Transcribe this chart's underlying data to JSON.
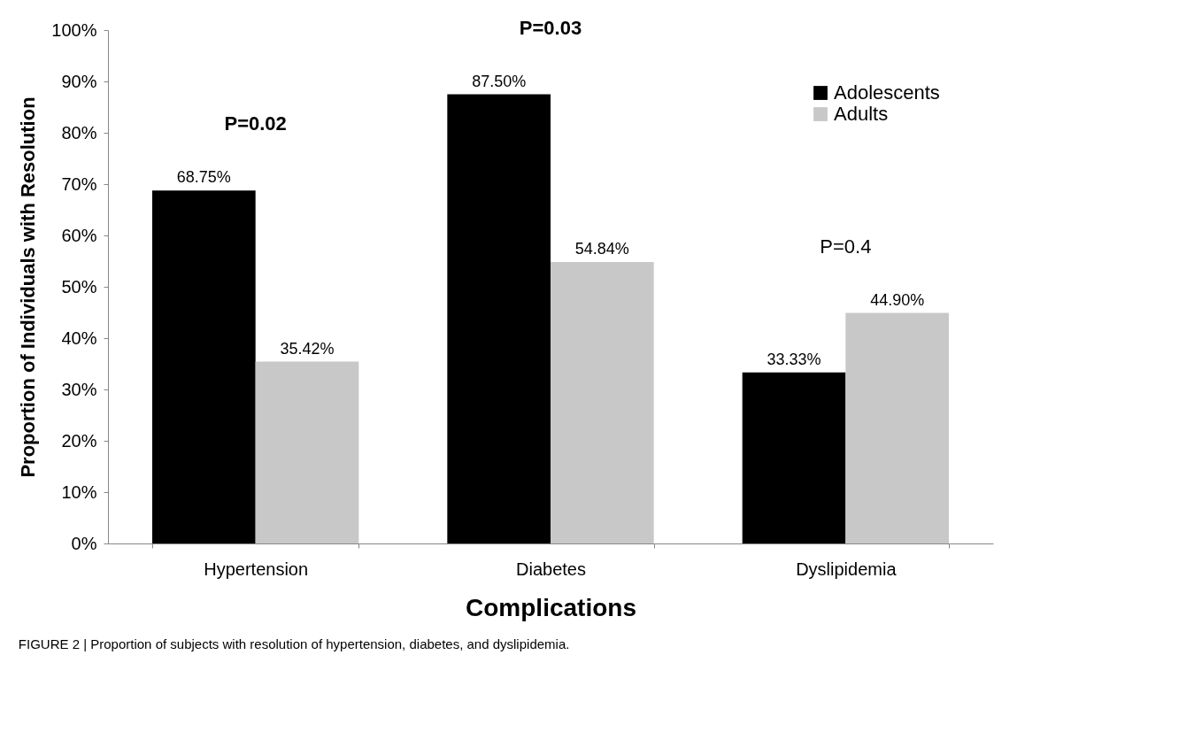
{
  "chart_data": {
    "type": "bar",
    "xlabel": "Complications",
    "ylabel": "Proportion of Individuals with Resolution",
    "categories": [
      "Hypertension",
      "Diabetes",
      "Dyslipidemia"
    ],
    "series": [
      {
        "name": "Adolescents",
        "color": "#000000",
        "values": [
          68.75,
          87.5,
          33.33
        ],
        "value_labels": [
          "68.75%",
          "87.50%",
          "33.33%"
        ]
      },
      {
        "name": "Adults",
        "color": "#c8c8c8",
        "values": [
          35.42,
          54.84,
          44.9
        ],
        "value_labels": [
          "35.42%",
          "54.84%",
          "44.90%"
        ]
      }
    ],
    "ylim": [
      0,
      100
    ],
    "yticks": [
      {
        "value": 0,
        "label": "0%"
      },
      {
        "value": 10,
        "label": "10%"
      },
      {
        "value": 20,
        "label": "20%"
      },
      {
        "value": 30,
        "label": "30%"
      },
      {
        "value": 40,
        "label": "40%"
      },
      {
        "value": 50,
        "label": "50%"
      },
      {
        "value": 60,
        "label": "60%"
      },
      {
        "value": 70,
        "label": "70%"
      },
      {
        "value": 80,
        "label": "80%"
      },
      {
        "value": 90,
        "label": "90%"
      },
      {
        "value": 100,
        "label": "100%"
      }
    ],
    "annotations": [
      "P=0.02",
      "P=0.03",
      "P=0.4",
      "FIGURE 2 | Proportion of subjects with resolution of hypertension, diabetes, and dyslipidemia."
    ],
    "legend": "top right",
    "grid": false
  }
}
